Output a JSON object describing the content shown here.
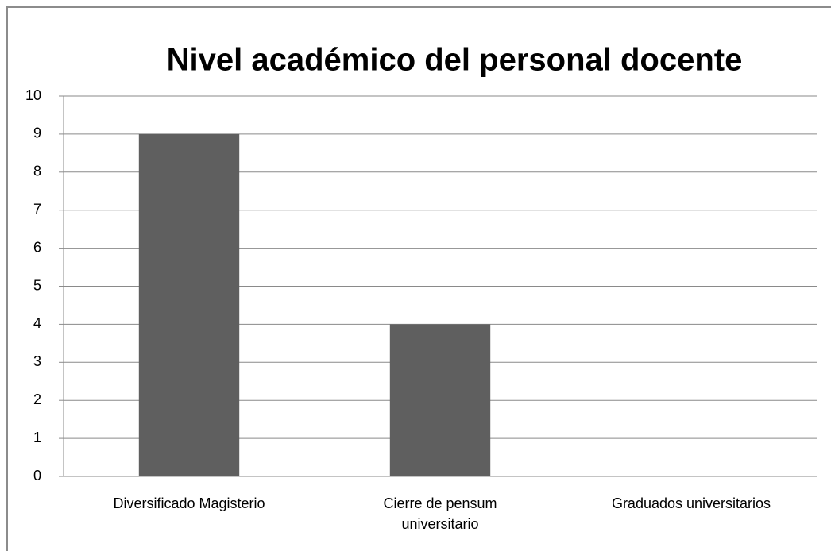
{
  "chart_data": {
    "type": "bar",
    "title": "Nivel académico del personal docente",
    "categories": [
      "Diversificado Magisterio",
      "Cierre de pensum universitario",
      "Graduados universitarios"
    ],
    "values": [
      9,
      4,
      0
    ],
    "color": "#5f5f5f",
    "ylim": [
      0,
      10
    ],
    "yticks": [
      0,
      1,
      2,
      3,
      4,
      5,
      6,
      7,
      8,
      9,
      10
    ],
    "grid": true
  }
}
